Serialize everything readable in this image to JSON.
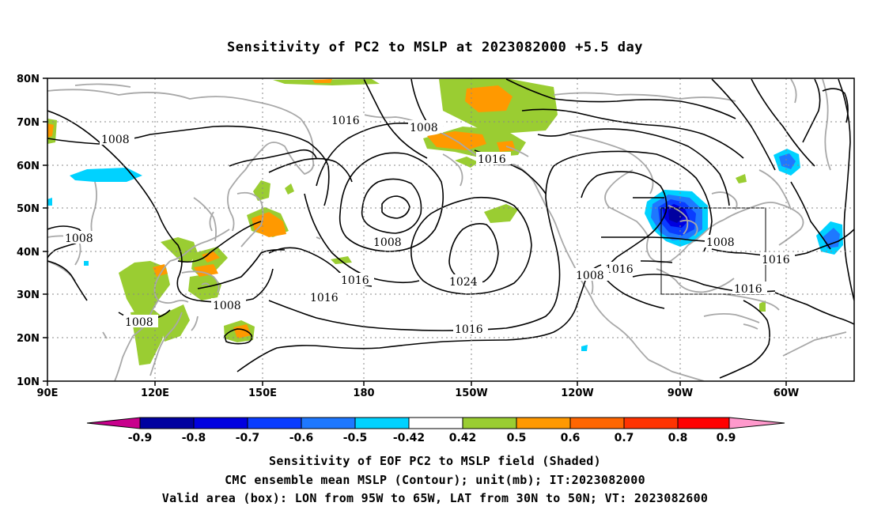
{
  "title": "Sensitivity of PC2 to MSLP at 2023082000 +5.5 day",
  "lat_labels": [
    "80N",
    "70N",
    "60N",
    "50N",
    "40N",
    "30N",
    "20N",
    "10N"
  ],
  "lon_labels": [
    "90E",
    "120E",
    "150E",
    "180",
    "150W",
    "120W",
    "90W",
    "60W"
  ],
  "contour_labels": [
    "1008",
    "1016",
    "1008",
    "1016",
    "1008",
    "1016",
    "1016",
    "1024",
    "1016",
    "1008",
    "1016",
    "1008",
    "1008",
    "1016",
    "1008",
    "1016",
    "1008"
  ],
  "colorbar": {
    "labels": [
      "-0.9",
      "-0.8",
      "-0.7",
      "-0.6",
      "-0.5",
      "-0.42",
      "0.42",
      "0.5",
      "0.6",
      "0.7",
      "0.8",
      "0.9"
    ],
    "colors": [
      "#c8008c",
      "#0000a0",
      "#0000e0",
      "#0a3cff",
      "#1e78ff",
      "#0aaaff",
      "#00d2ff",
      "#ffffff",
      "#9acd32",
      "#ff9900",
      "#ff6600",
      "#ff3300",
      "#ff0000",
      "#ff99cc"
    ]
  },
  "captions": {
    "line1": "Sensitivity of EOF PC2 to MSLP field (Shaded)",
    "line2": "CMC ensemble mean MSLP (Contour); unit(mb); IT:2023082000",
    "line3": "Valid area (box): LON from 95W to 65W, LAT from 30N to 50N; VT: 2023082600"
  },
  "colors": {
    "coast": "#a8a8a8",
    "contour": "#000000",
    "grid": "#888888",
    "positive": "#9acd32",
    "orange": "#ff9900",
    "negative": "#1e78ff"
  }
}
